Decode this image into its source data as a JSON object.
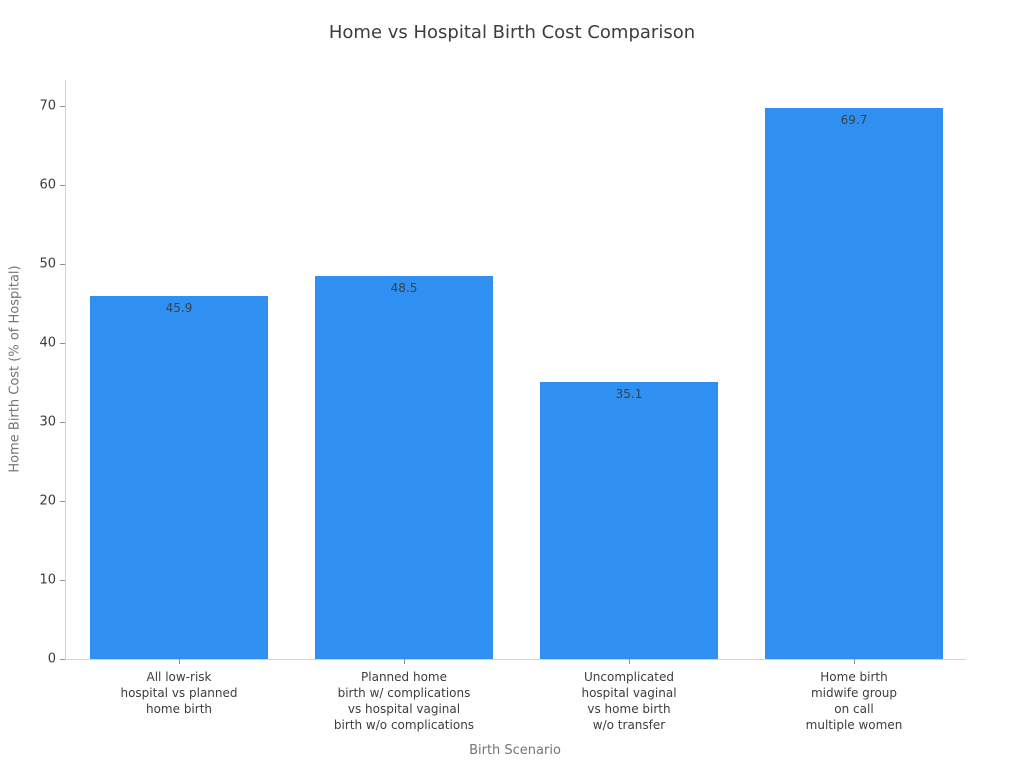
{
  "chart_data": {
    "type": "bar",
    "title": "Home vs Hospital Birth Cost Comparison",
    "xlabel": "Birth Scenario",
    "ylabel": "Home Birth Cost (% of Hospital)",
    "categories": [
      [
        "All low-risk",
        "hospital vs planned",
        "home birth"
      ],
      [
        "Planned home",
        "birth w/ complications",
        "vs hospital vaginal",
        "birth w/o complications"
      ],
      [
        "Uncomplicated",
        "hospital vaginal",
        "vs home birth",
        "w/o transfer"
      ],
      [
        "Home birth",
        "midwife group",
        "on call",
        "multiple women"
      ]
    ],
    "values": [
      45.9,
      48.5,
      35.1,
      69.7
    ],
    "value_labels": [
      "45.9",
      "48.5",
      "35.1",
      "69.7"
    ],
    "yticks": [
      0,
      10,
      20,
      30,
      40,
      50,
      60,
      70
    ],
    "ylim": [
      0,
      73.3
    ],
    "grid": false,
    "legend": null,
    "bar_color": "#2f90f1",
    "value_label_color": "#3b4149",
    "tick_label_color": "#3d3d3d",
    "axis_title_color": "#757575",
    "spine_color": "#d4d4d4"
  }
}
